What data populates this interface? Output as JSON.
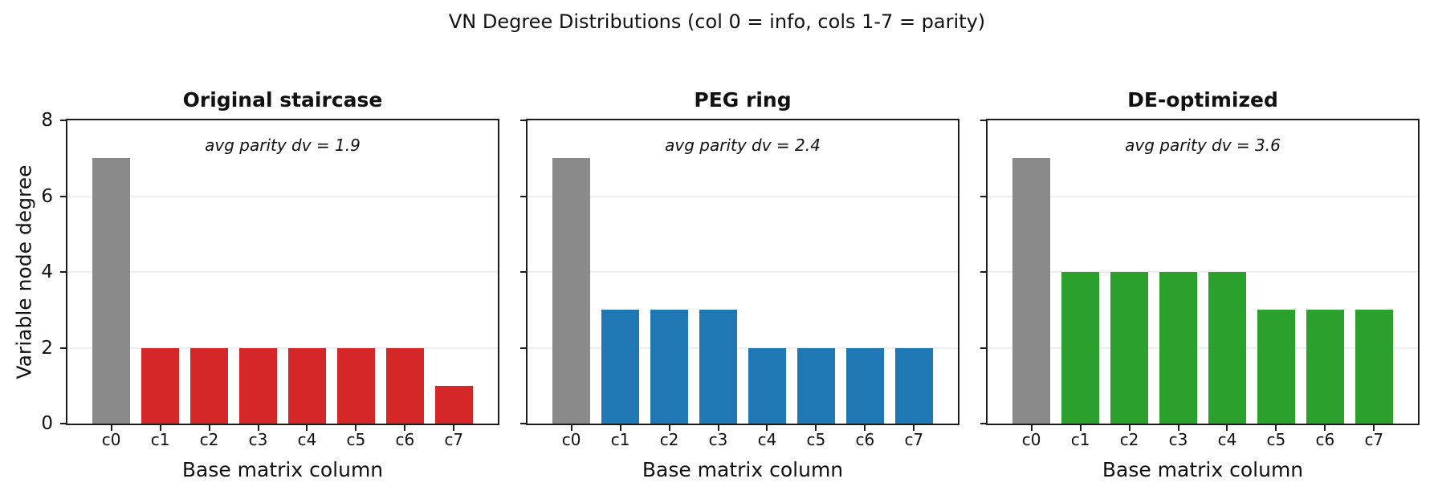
{
  "figure": {
    "suptitle": "VN Degree Distributions (col 0 = info, cols 1-7 = parity)",
    "ylabel": "Variable node degree"
  },
  "chart_data": [
    {
      "type": "bar",
      "title": "Original staircase",
      "annotation": "avg parity dv = 1.9",
      "categories": [
        "c0",
        "c1",
        "c2",
        "c3",
        "c4",
        "c5",
        "c6",
        "c7"
      ],
      "values": [
        7,
        2,
        2,
        2,
        2,
        2,
        2,
        1
      ],
      "bar_colors": [
        "#8a8a8a",
        "#d62728",
        "#d62728",
        "#d62728",
        "#d62728",
        "#d62728",
        "#d62728",
        "#d62728"
      ],
      "info_color": "#8a8a8a",
      "parity_color": "#d62728",
      "xlabel": "Base matrix column",
      "ylim": [
        0,
        8
      ],
      "yticks": [
        0,
        2,
        4,
        6,
        8
      ],
      "ytick_labels_visible": true,
      "grid": true,
      "legend": "none"
    },
    {
      "type": "bar",
      "title": "PEG ring",
      "annotation": "avg parity dv = 2.4",
      "categories": [
        "c0",
        "c1",
        "c2",
        "c3",
        "c4",
        "c5",
        "c6",
        "c7"
      ],
      "values": [
        7,
        3,
        3,
        3,
        2,
        2,
        2,
        2
      ],
      "bar_colors": [
        "#8a8a8a",
        "#1f77b4",
        "#1f77b4",
        "#1f77b4",
        "#1f77b4",
        "#1f77b4",
        "#1f77b4",
        "#1f77b4"
      ],
      "info_color": "#8a8a8a",
      "parity_color": "#1f77b4",
      "xlabel": "Base matrix column",
      "ylim": [
        0,
        8
      ],
      "yticks": [
        0,
        2,
        4,
        6,
        8
      ],
      "ytick_labels_visible": false,
      "grid": true,
      "legend": "none"
    },
    {
      "type": "bar",
      "title": "DE-optimized",
      "annotation": "avg parity dv = 3.6",
      "categories": [
        "c0",
        "c1",
        "c2",
        "c3",
        "c4",
        "c5",
        "c6",
        "c7"
      ],
      "values": [
        7,
        4,
        4,
        4,
        4,
        3,
        3,
        3
      ],
      "bar_colors": [
        "#8a8a8a",
        "#2ca02c",
        "#2ca02c",
        "#2ca02c",
        "#2ca02c",
        "#2ca02c",
        "#2ca02c",
        "#2ca02c"
      ],
      "info_color": "#8a8a8a",
      "parity_color": "#2ca02c",
      "xlabel": "Base matrix column",
      "ylim": [
        0,
        8
      ],
      "yticks": [
        0,
        2,
        4,
        6,
        8
      ],
      "ytick_labels_visible": false,
      "grid": true,
      "legend": "none"
    }
  ]
}
